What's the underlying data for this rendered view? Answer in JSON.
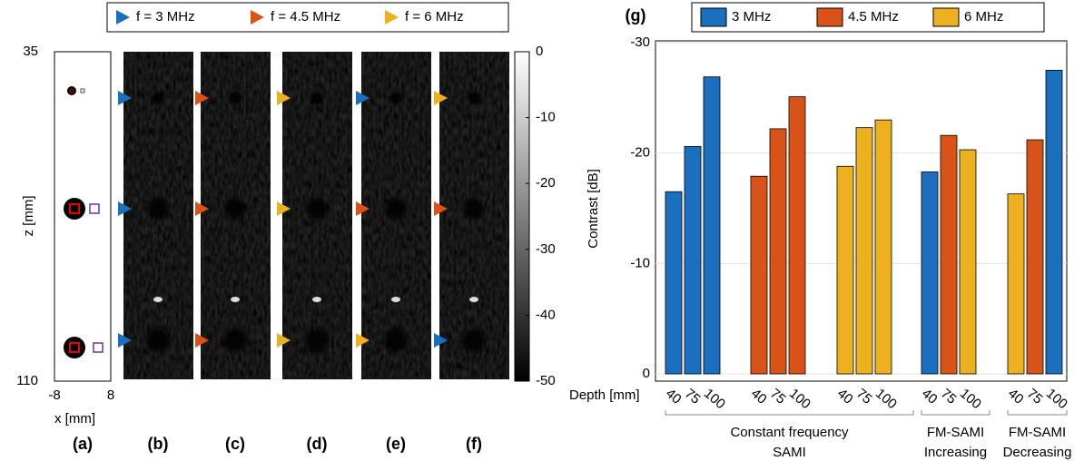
{
  "legend_top": [
    {
      "label": "f = 3 MHz",
      "color": "#1a6fbf"
    },
    {
      "label": "f = 4.5 MHz",
      "color": "#d95319"
    },
    {
      "label": "f = 6 MHz",
      "color": "#edb120"
    }
  ],
  "panel_a": {
    "label": "(a)",
    "xlabel": "x [mm]",
    "ylabel": "z [mm]",
    "xlim": [
      -8,
      8
    ],
    "ylim": [
      35,
      110
    ],
    "xticks": [
      -8,
      8
    ],
    "yticks": [
      35,
      110
    ]
  },
  "panel_labels": [
    "(b)",
    "(c)",
    "(d)",
    "(e)",
    "(f)"
  ],
  "colorbar": {
    "lim": [
      0,
      -50
    ],
    "ticks": [
      0,
      -10,
      -20,
      -30,
      -40,
      -50
    ]
  },
  "chart_data": {
    "type": "bar",
    "panel_label": "(g)",
    "ylabel": "Contrast [dB]",
    "xlabel": "Depth [mm]",
    "categories": [
      "40",
      "75",
      "100",
      "40",
      "75",
      "100",
      "40",
      "75",
      "100",
      "40",
      "75",
      "100",
      "40",
      "75",
      "100"
    ],
    "group_labels": [
      [
        "Constant frequency",
        "SAMI"
      ],
      [
        "FM-SAMI",
        "Increasing"
      ],
      [
        "FM-SAMI",
        "Decreasing"
      ]
    ],
    "series": [
      {
        "name": "3 MHz",
        "color": "#1a6fbf",
        "values": [
          -16.5,
          -20.6,
          -26.9,
          null,
          null,
          null,
          null,
          null,
          null,
          -18.3,
          null,
          null,
          null,
          null,
          -27.5
        ]
      },
      {
        "name": "4.5 MHz",
        "color": "#d95319",
        "values": [
          null,
          null,
          null,
          -17.9,
          -22.2,
          -25.1,
          null,
          null,
          null,
          null,
          -21.6,
          null,
          null,
          -21.2,
          null
        ]
      },
      {
        "name": "6 MHz",
        "color": "#edb120",
        "values": [
          null,
          null,
          null,
          null,
          null,
          null,
          -18.8,
          -22.3,
          -23.0,
          null,
          null,
          -20.3,
          -16.3,
          null,
          null
        ]
      }
    ],
    "ylim": [
      0,
      -30
    ],
    "yticks": [
      0,
      -10,
      -20,
      -30
    ],
    "grid": true
  }
}
